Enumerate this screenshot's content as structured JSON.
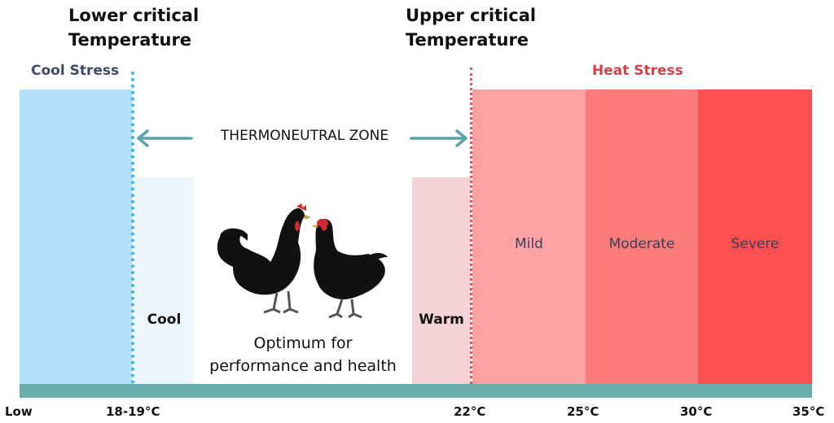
{
  "headings": {
    "lower_line1": "Lower critical",
    "lower_line2": "Temperature",
    "upper_line1": "Upper critical",
    "upper_line2": "Temperature"
  },
  "zones": {
    "cool_stress": "Cool Stress",
    "heat_stress": "Heat Stress",
    "thermoneutral": "THERMONEUTRAL ZONE"
  },
  "bands": {
    "cool": "Cool",
    "warm": "Warm",
    "mild": "Mild",
    "moderate": "Moderate",
    "severe": "Severe"
  },
  "optimum": {
    "line1": "Optimum for",
    "line2": "performance and health"
  },
  "axis": {
    "low": "Low",
    "t1": "18-19°C",
    "t2": "22°C",
    "t3": "25°C",
    "t4": "30°C",
    "t5": "35°C"
  },
  "colors": {
    "cool_stress_fill": "#b3e0fb",
    "cool_fill": "#eaf5fd",
    "warm_fill": "#f3d3d5",
    "mild_fill": "#fda3a3",
    "moderate_fill": "#fb7b7b",
    "severe_fill": "#fd4f4f",
    "axis_bar": "#6aadac",
    "arrow": "#5aa2a6",
    "cool_stress_text": "#3f4a6b",
    "heat_stress_text": "#d3414a",
    "lower_line": "#36b6f2",
    "upper_line": "#e8545c"
  }
}
